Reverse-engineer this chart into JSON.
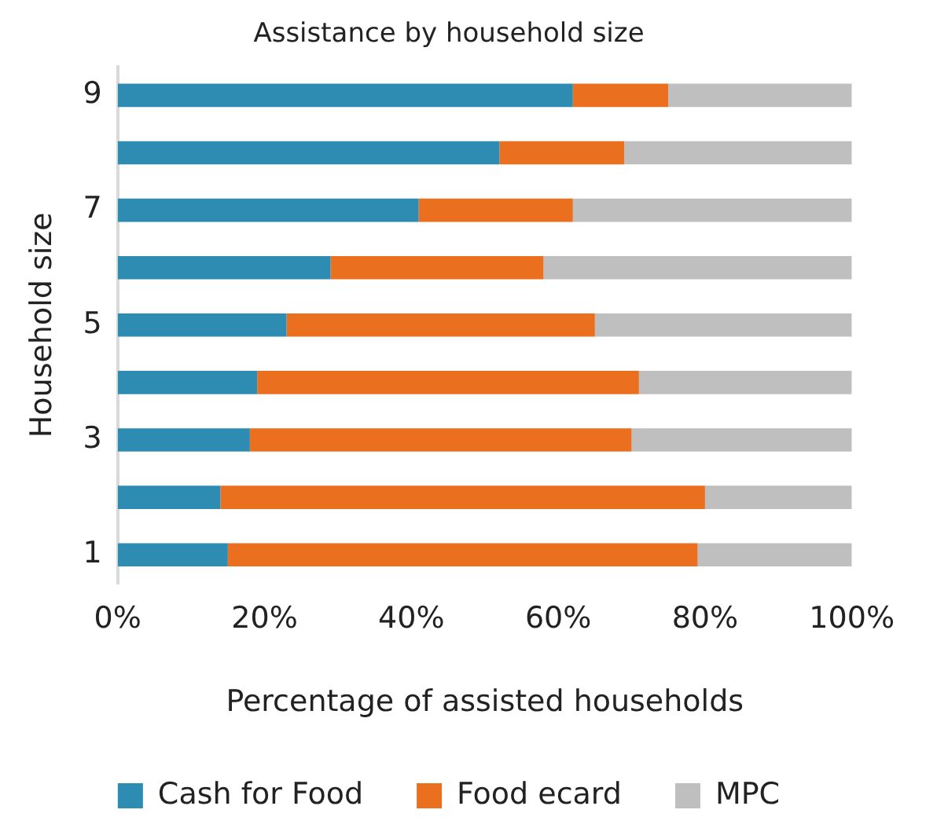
{
  "chart_data": {
    "type": "bar",
    "orientation": "horizontal",
    "stacked": true,
    "title": "Assistance by household size",
    "xlabel": "Percentage of assisted households",
    "ylabel": "Household size",
    "categories": [
      "9",
      null,
      "7",
      null,
      "5",
      null,
      "3",
      null,
      "1"
    ],
    "series": [
      {
        "name": "Cash for Food",
        "color": "#2e8cb3",
        "values": [
          62,
          52,
          41,
          29,
          23,
          19,
          18,
          14,
          15
        ]
      },
      {
        "name": "Food ecard",
        "color": "#ea701f",
        "values": [
          13,
          17,
          21,
          29,
          42,
          52,
          52,
          66,
          64
        ]
      },
      {
        "name": "MPC",
        "color": "#bfbfbf",
        "values": [
          25,
          31,
          38,
          42,
          35,
          29,
          30,
          20,
          21
        ]
      }
    ],
    "xlim": [
      0,
      100
    ],
    "xticks": [
      {
        "value": 0,
        "label": "0%"
      },
      {
        "value": 20,
        "label": "20%"
      },
      {
        "value": 40,
        "label": "40%"
      },
      {
        "value": 60,
        "label": "60%"
      },
      {
        "value": 80,
        "label": "80%"
      },
      {
        "value": 100,
        "label": "100%"
      }
    ],
    "grid": false,
    "legend": "bottom"
  }
}
